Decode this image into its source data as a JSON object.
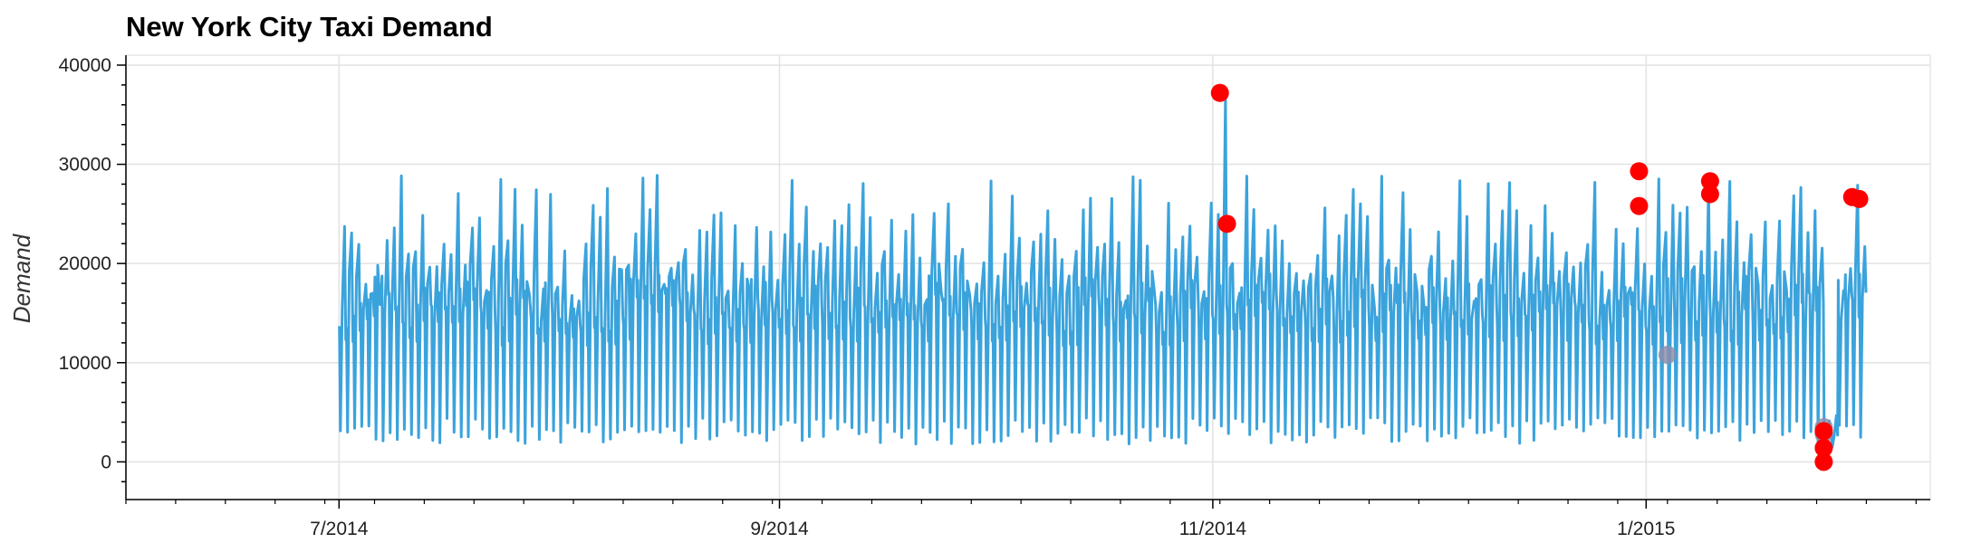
{
  "chart_data": {
    "type": "line",
    "title": "New York City Taxi Demand",
    "xlabel": "",
    "ylabel": "Demand",
    "xlim": [
      "2014-06-01",
      "2015-02-10"
    ],
    "ylim": [
      -3800,
      41000
    ],
    "x_ticks": [
      {
        "date": "2014-07-01",
        "label": "7/2014"
      },
      {
        "date": "2014-09-01",
        "label": "9/2014"
      },
      {
        "date": "2014-11-01",
        "label": "11/2014"
      },
      {
        "date": "2015-01-01",
        "label": "1/2015"
      }
    ],
    "y_ticks": [
      0,
      10000,
      20000,
      30000,
      40000
    ],
    "grid": true,
    "series": [
      {
        "color": "#3ba3dc",
        "sampling": "half-hourly",
        "x_start": "2014-07-01",
        "x_end": "2015-01-31",
        "daily_trough_range": [
          1800,
          4500
        ],
        "daily_peak_range": [
          17000,
          29000
        ],
        "low_values": [
          {
            "x": "2015-01-26",
            "y": 0
          },
          {
            "x": "2015-01-27",
            "y": 1500
          }
        ],
        "high_values": [
          {
            "x": "2014-11-02",
            "y": 37000
          }
        ]
      }
    ],
    "anomalies": {
      "color": "#ff0000",
      "points": [
        {
          "x": "2014-11-02",
          "y": 37200
        },
        {
          "x": "2014-11-03",
          "y": 24000
        },
        {
          "x": "2014-12-31",
          "y": 29300
        },
        {
          "x": "2014-12-31",
          "y": 25800
        },
        {
          "x": "2015-01-10",
          "y": 28300
        },
        {
          "x": "2015-01-10",
          "y": 27000
        },
        {
          "x": "2015-01-26",
          "y": 3100
        },
        {
          "x": "2015-01-26",
          "y": 1400
        },
        {
          "x": "2015-01-26",
          "y": 0
        },
        {
          "x": "2015-01-30",
          "y": 26700
        },
        {
          "x": "2015-01-31",
          "y": 26500
        }
      ]
    },
    "highlights": {
      "color": "#8c8fae",
      "points": [
        {
          "x": "2015-01-04",
          "y": 10800
        },
        {
          "x": "2015-01-26",
          "y": 3500
        },
        {
          "x": "2015-01-26",
          "y": 2800
        }
      ]
    }
  }
}
